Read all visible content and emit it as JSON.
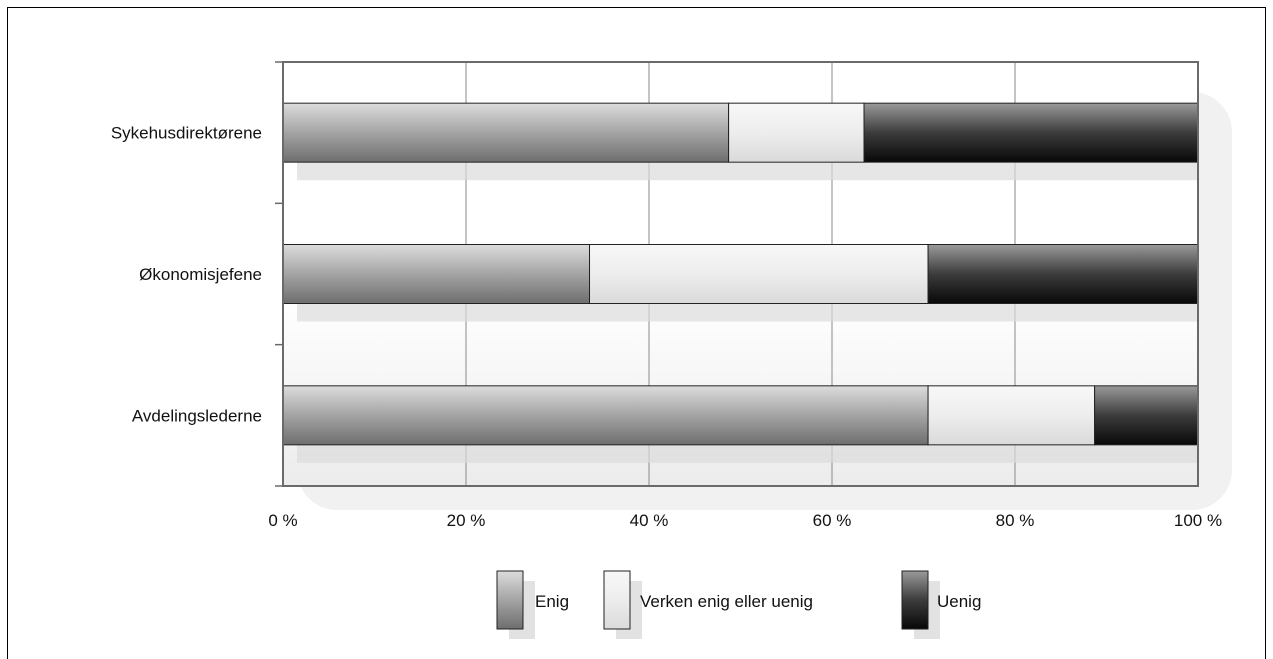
{
  "chart_data": {
    "type": "bar",
    "orientation": "horizontal",
    "stacked": "percent",
    "categories": [
      "Sykehusdirektørene",
      "Økonomisjefene",
      "Avdelingslederne"
    ],
    "series": [
      {
        "name": "Enig",
        "values": [
          48.7,
          33.5,
          70.5
        ]
      },
      {
        "name": "Verken enig eller uenig",
        "values": [
          14.8,
          37.0,
          18.2
        ]
      },
      {
        "name": "Uenig",
        "values": [
          36.5,
          29.5,
          11.3
        ]
      }
    ],
    "x_ticks": [
      "0 %",
      "20 %",
      "40 %",
      "60 %",
      "80 %",
      "100 %"
    ],
    "xlim": [
      0,
      100
    ],
    "grid": true,
    "legend_position": "bottom",
    "colors": {
      "Enig": "#9a9a9a",
      "Verken enig eller uenig": "#ececec",
      "Uenig": "#3a3a3a"
    }
  }
}
